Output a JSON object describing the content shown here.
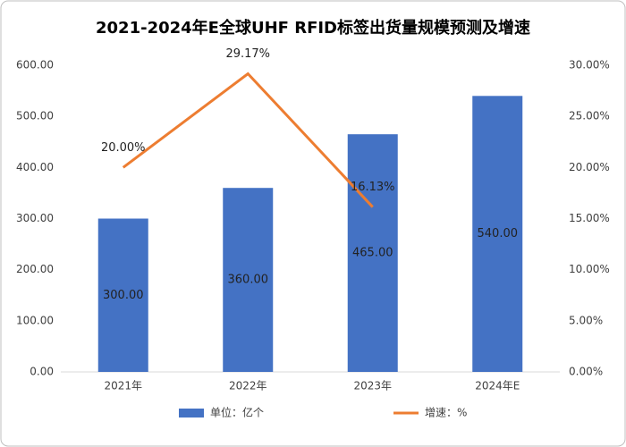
{
  "chart_data": {
    "type": "combo",
    "title": "2021-2024年E全球UHF RFID标签出货量规模预测及增速",
    "categories": [
      "2021年",
      "2022年",
      "2023年",
      "2024年E"
    ],
    "series": [
      {
        "name": "单位：亿个",
        "type": "bar",
        "color": "#4472c4",
        "values": [
          300,
          360,
          465,
          540
        ],
        "value_labels": [
          "300.00",
          "360.00",
          "465.00",
          "540.00"
        ]
      },
      {
        "name": "增速：%",
        "type": "line",
        "axis": "y2",
        "color": "#ed7d31",
        "values": [
          20,
          29.17,
          16.13,
          null
        ],
        "value_labels": [
          "20.00%",
          "29.17%",
          "16.13%",
          null
        ]
      }
    ],
    "ylim": [
      0,
      600
    ],
    "yticks": [
      {
        "value": 0,
        "label": "0.00"
      },
      {
        "value": 100,
        "label": "100.00"
      },
      {
        "value": 200,
        "label": "200.00"
      },
      {
        "value": 300,
        "label": "300.00"
      },
      {
        "value": 400,
        "label": "400.00"
      },
      {
        "value": 500,
        "label": "500.00"
      },
      {
        "value": 600,
        "label": "600.00"
      }
    ],
    "y2lim": [
      0,
      30
    ],
    "y2ticks": [
      {
        "value": 0,
        "label": "0.00%"
      },
      {
        "value": 5,
        "label": "5.00%"
      },
      {
        "value": 10,
        "label": "10.00%"
      },
      {
        "value": 15,
        "label": "15.00%"
      },
      {
        "value": 20,
        "label": "20.00%"
      },
      {
        "value": 25,
        "label": "25.00%"
      },
      {
        "value": 30,
        "label": "30.00%"
      }
    ],
    "grid": false,
    "legend": "bottom"
  }
}
